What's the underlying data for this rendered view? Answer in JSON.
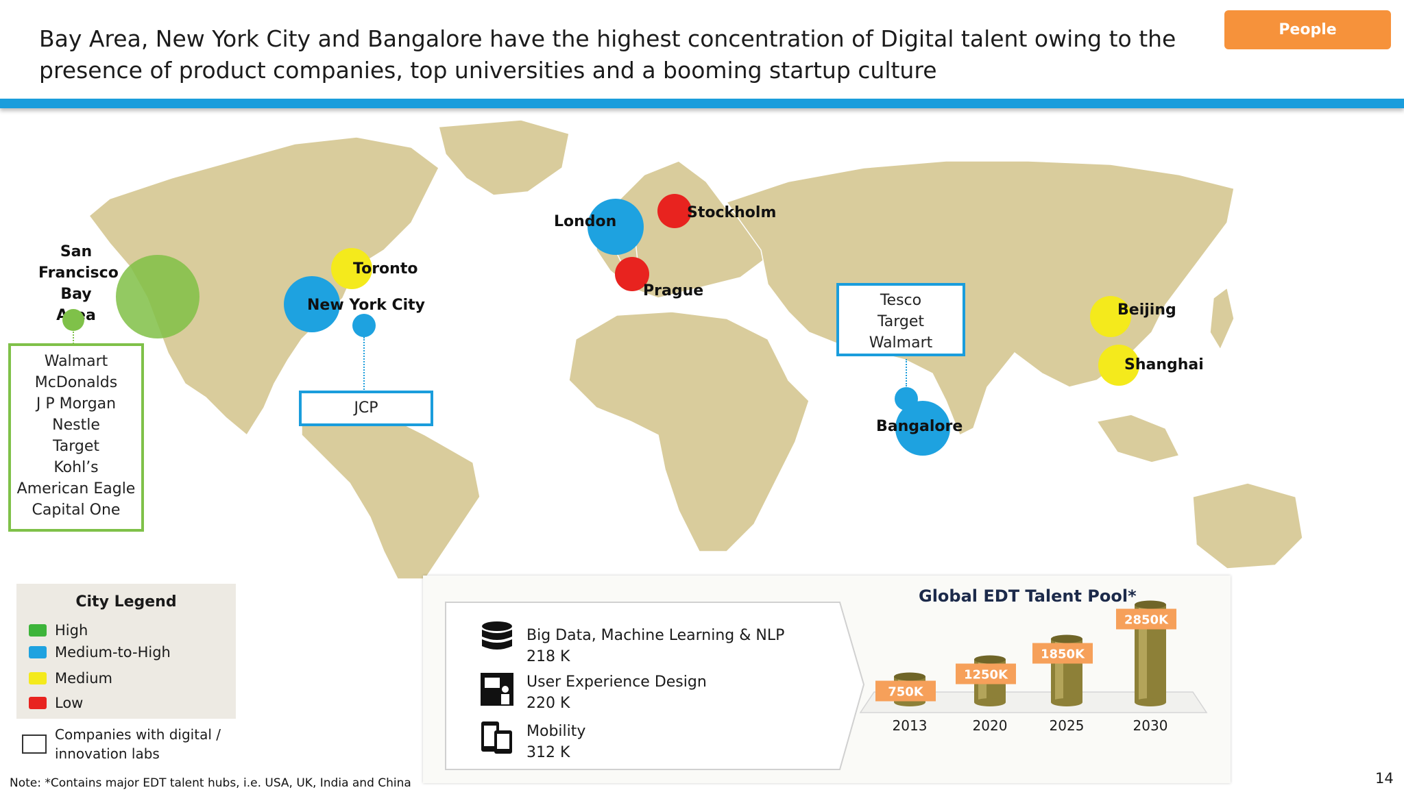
{
  "header": {
    "title_line1": "Bay Area, New York City and Bangalore have the highest concentration of Digital talent owing to the",
    "title_line2": "presence of product companies, top universities and a booming startup culture",
    "tag_button": "People"
  },
  "colors": {
    "high": "#3db43a",
    "medium_to_high": "#1ea2e0",
    "medium": "#f4ea1c",
    "low": "#e8231f",
    "accent_blue": "#1a9ddc",
    "tag_orange": "#f6923b",
    "land": "#d9cc9c"
  },
  "cities": [
    {
      "name": "San\nFrancisco\nBay Area",
      "level": "high"
    },
    {
      "name": "Toronto",
      "level": "medium"
    },
    {
      "name": "New York City",
      "level": "medium_to_high"
    },
    {
      "name": "London",
      "level": "medium_to_high"
    },
    {
      "name": "Stockholm",
      "level": "low"
    },
    {
      "name": "Prague",
      "level": "low"
    },
    {
      "name": "Beijing",
      "level": "medium"
    },
    {
      "name": "Shanghai",
      "level": "medium"
    },
    {
      "name": "Bangalore",
      "level": "medium_to_high"
    }
  ],
  "callouts": {
    "bay_area_companies": [
      "Walmart",
      "McDonalds",
      "J P Morgan",
      "Nestle",
      "Target",
      "Kohl’s",
      "American Eagle",
      "Capital One"
    ],
    "nyc_companies": [
      "JCP"
    ],
    "bangalore_companies": [
      "Tesco",
      "Target",
      "Walmart"
    ]
  },
  "legend": {
    "title": "City Legend",
    "items": [
      {
        "label": "High",
        "color": "#3db43a"
      },
      {
        "label": "Medium-to-High",
        "color": "#1ea2e0"
      },
      {
        "label": "Medium",
        "color": "#f4ea1c"
      },
      {
        "label": "Low",
        "color": "#e8231f"
      }
    ],
    "labs_label_line1": "Companies with digital /",
    "labs_label_line2": "innovation labs"
  },
  "skills": [
    {
      "icon": "database-icon",
      "name": "Big Data, Machine Learning & NLP",
      "value": "218 K"
    },
    {
      "icon": "ux-design-icon",
      "name": "User Experience Design",
      "value": "220 K"
    },
    {
      "icon": "mobile-devices-icon",
      "name": "Mobility",
      "value": "312 K"
    }
  ],
  "chart_data": {
    "type": "bar",
    "title": "Global EDT Talent Pool*",
    "categories": [
      "2013",
      "2020",
      "2025",
      "2030"
    ],
    "values": [
      750,
      1250,
      1850,
      2850
    ],
    "value_labels": [
      "750K",
      "1250K",
      "1850K",
      "2850K"
    ],
    "unit": "K",
    "ylim": [
      0,
      3000
    ],
    "grid": false
  },
  "footer": {
    "note": "Note: *Contains major EDT talent hubs, i.e. USA, UK, India and China",
    "page_number": "14"
  }
}
